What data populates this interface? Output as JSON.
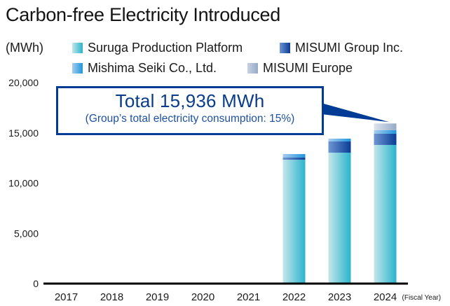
{
  "chart_data": {
    "type": "bar",
    "stacked": true,
    "title": "Carbon-free Electricity Introduced",
    "ylabel": "(MWh)",
    "xlabel": "(Fiscal Year)",
    "ylim": [
      0,
      20000
    ],
    "yticks": [
      0,
      5000,
      10000,
      15000,
      20000
    ],
    "ytick_labels": [
      "0",
      "5,000",
      "10,000",
      "15,000",
      "20,000"
    ],
    "categories": [
      "2017",
      "2018",
      "2019",
      "2020",
      "2021",
      "2022",
      "2023",
      "2024"
    ],
    "series": [
      {
        "name": "Suruga Production Platform",
        "color_from": "#c4e6ea",
        "color_to": "#2ab4cc",
        "values": [
          0,
          0,
          0,
          0,
          0,
          12330,
          13030,
          13800
        ]
      },
      {
        "name": "MISUMI Group Inc.",
        "color_from": "#6e96d2",
        "color_to": "#0a3c96",
        "values": [
          0,
          0,
          0,
          0,
          0,
          210,
          1115,
          1115
        ]
      },
      {
        "name": "Mishima Seiki Co., Ltd.",
        "color_from": "#a8ccee",
        "color_to": "#1e96dc",
        "values": [
          0,
          0,
          0,
          0,
          0,
          350,
          280,
          350
        ]
      },
      {
        "name": "MISUMI Europe",
        "color_from": "#dce4ee",
        "color_to": "#96aac8",
        "values": [
          0,
          0,
          0,
          0,
          0,
          0,
          0,
          671
        ]
      }
    ],
    "legend": {
      "position": "top",
      "entries": [
        "Suruga Production Platform",
        "MISUMI Group Inc.",
        "Mishima Seiki Co., Ltd.",
        "MISUMI Europe"
      ]
    },
    "grid": false,
    "annotation": {
      "main": "Total 15,936 MWh",
      "sub": "(Group’s total electricity consumption: 15%)",
      "target_category": "2024",
      "color": "#003c96"
    }
  }
}
